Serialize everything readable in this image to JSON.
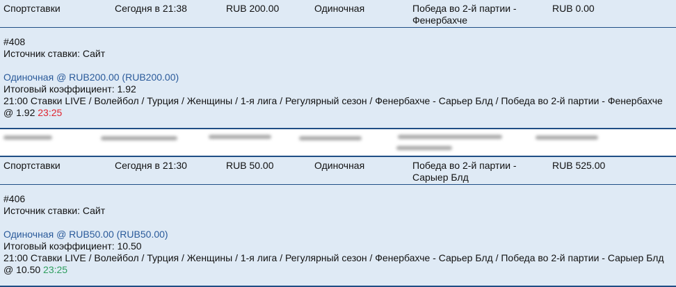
{
  "bets": [
    {
      "type": "Спортставки",
      "date": "Сегодня в 21:38",
      "stake": "RUB 200.00",
      "kind": "Одиночная",
      "selection": "Победа во 2-й партии - Фенербахче",
      "payout": "RUB 0.00",
      "id": "#408",
      "source": "Источник ставки: Сайт",
      "link": "Одиночная @ RUB200.00 (RUB200.00)",
      "coef": "Итоговый коэффициент: 1.92",
      "event": "21:00 Ставки LIVE / Волейбол / Турция / Женщины / 1-я лига / Регулярный сезон / Фенербахче - Сарьер Блд / Победа во 2-й партии - Фенербахче @ 1.92",
      "time": "23:25",
      "time_color": "#e0242f"
    },
    {
      "type": "Спортставки",
      "date": "Сегодня в 21:30",
      "stake": "RUB 50.00",
      "kind": "Одиночная",
      "selection": "Победа во 2-й партии - Сарыер Блд",
      "payout": "RUB 525.00",
      "id": "#406",
      "source": "Источник ставки: Сайт",
      "link": "Одиночная @ RUB50.00 (RUB50.00)",
      "coef": "Итоговый коэффициент: 10.50",
      "event": "21:00 Ставки LIVE / Волейбол / Турция / Женщины / 1-я лига / Регулярный сезон / Фенербахче - Сарьер Блд / Победа во 2-й партии - Сарыер Блд @ 10.50",
      "time": "23:25",
      "time_color": "#2e9e5e"
    }
  ]
}
